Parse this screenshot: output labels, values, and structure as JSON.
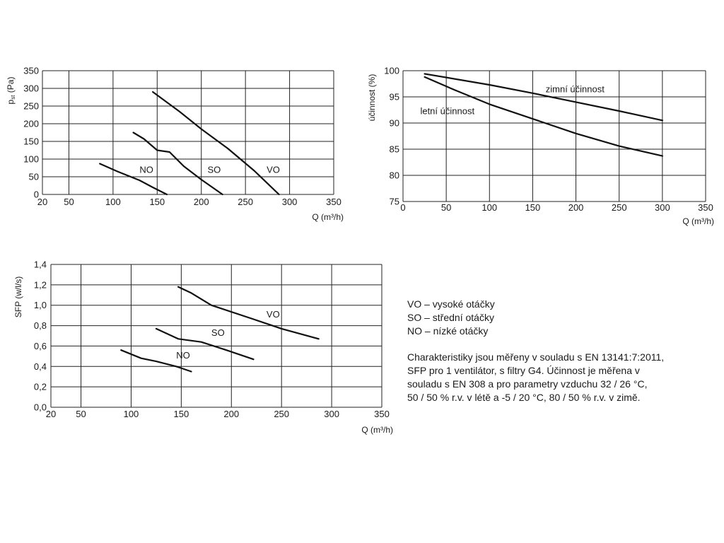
{
  "chart_data": [
    {
      "type": "line",
      "xlabel": "Q (m³/h)",
      "ylabel": "pst (Pa)",
      "ylabel_main": "p",
      "ylabel_sub": "st",
      "ylabel_unit": " (Pa)",
      "xlim": [
        20,
        350
      ],
      "ylim": [
        0,
        350
      ],
      "xticks": [
        20,
        50,
        100,
        150,
        200,
        250,
        300,
        350
      ],
      "yticks": [
        0,
        50,
        100,
        150,
        200,
        250,
        300,
        350
      ],
      "series": [
        {
          "name": "NO",
          "label_at": [
            130,
            70
          ],
          "points": [
            [
              85,
              87
            ],
            [
              105,
              65
            ],
            [
              130,
              40
            ],
            [
              145,
              20
            ],
            [
              161,
              0
            ]
          ]
        },
        {
          "name": "SO",
          "label_at": [
            207,
            70
          ],
          "points": [
            [
              123,
              175
            ],
            [
              135,
              157
            ],
            [
              150,
              125
            ],
            [
              164,
              120
            ],
            [
              180,
              80
            ],
            [
              200,
              42
            ],
            [
              224,
              0
            ]
          ]
        },
        {
          "name": "VO",
          "label_at": [
            274,
            70
          ],
          "points": [
            [
              145,
              290
            ],
            [
              175,
              235
            ],
            [
              200,
              185
            ],
            [
              230,
              130
            ],
            [
              260,
              67
            ],
            [
              288,
              0
            ]
          ]
        }
      ]
    },
    {
      "type": "line",
      "xlabel": "Q (m³/h)",
      "ylabel": "účinnost (%)",
      "xlim": [
        0,
        350
      ],
      "ylim": [
        75,
        100
      ],
      "xticks": [
        0,
        50,
        100,
        150,
        200,
        250,
        300,
        350
      ],
      "yticks": [
        75,
        80,
        85,
        90,
        95,
        100
      ],
      "series": [
        {
          "name": "zimní účinnost",
          "label_at": [
            165,
            96.5
          ],
          "points": [
            [
              25,
              99.4
            ],
            [
              100,
              97.3
            ],
            [
              150,
              95.7
            ],
            [
              200,
              94.0
            ],
            [
              250,
              92.3
            ],
            [
              300,
              90.5
            ]
          ]
        },
        {
          "name": "letní účinnost",
          "label_at": [
            20,
            92.3
          ],
          "points": [
            [
              25,
              98.8
            ],
            [
              60,
              96.3
            ],
            [
              100,
              93.6
            ],
            [
              150,
              90.8
            ],
            [
              200,
              88.0
            ],
            [
              250,
              85.6
            ],
            [
              300,
              83.7
            ]
          ]
        }
      ]
    },
    {
      "type": "line",
      "xlabel": "Q (m³/h)",
      "ylabel": "SFP (w/l/s)",
      "xlim": [
        20,
        350
      ],
      "ylim": [
        0.0,
        1.4
      ],
      "xticks": [
        20,
        50,
        100,
        150,
        200,
        250,
        300,
        350
      ],
      "yticks": [
        0.0,
        0.2,
        0.4,
        0.6,
        0.8,
        1.0,
        1.2,
        1.4
      ],
      "yticklabels": [
        "0,0",
        "0,2",
        "0,4",
        "0,6",
        "0,8",
        "1,0",
        "1,2",
        "1,4"
      ],
      "series": [
        {
          "name": "NO",
          "label_at": [
            145,
            0.51
          ],
          "points": [
            [
              90,
              0.56
            ],
            [
              110,
              0.48
            ],
            [
              125,
              0.45
            ],
            [
              145,
              0.4
            ],
            [
              160,
              0.35
            ]
          ]
        },
        {
          "name": "SO",
          "label_at": [
            180,
            0.73
          ],
          "points": [
            [
              125,
              0.77
            ],
            [
              147,
              0.67
            ],
            [
              170,
              0.64
            ],
            [
              195,
              0.56
            ],
            [
              222,
              0.47
            ]
          ]
        },
        {
          "name": "VO",
          "label_at": [
            235,
            0.91
          ],
          "points": [
            [
              147,
              1.18
            ],
            [
              160,
              1.12
            ],
            [
              180,
              1.0
            ],
            [
              220,
              0.87
            ],
            [
              250,
              0.77
            ],
            [
              287,
              0.67
            ]
          ]
        }
      ]
    }
  ],
  "legend": [
    "VO – vysoké otáčky",
    "SO – střední otáčky",
    "NO – nízké otáčky"
  ],
  "description": "Charakteristiky jsou měřeny v souladu s EN 13141:7:2011,\nSFP pro 1 ventilátor, s filtry G4. Účinnost je měřena v\nsouladu s EN 308 a pro parametry vzduchu 32 / 26 °C,\n50 / 50 % r.v. v létě a -5 / 20 °C, 80 / 50 % r.v. v zimě."
}
